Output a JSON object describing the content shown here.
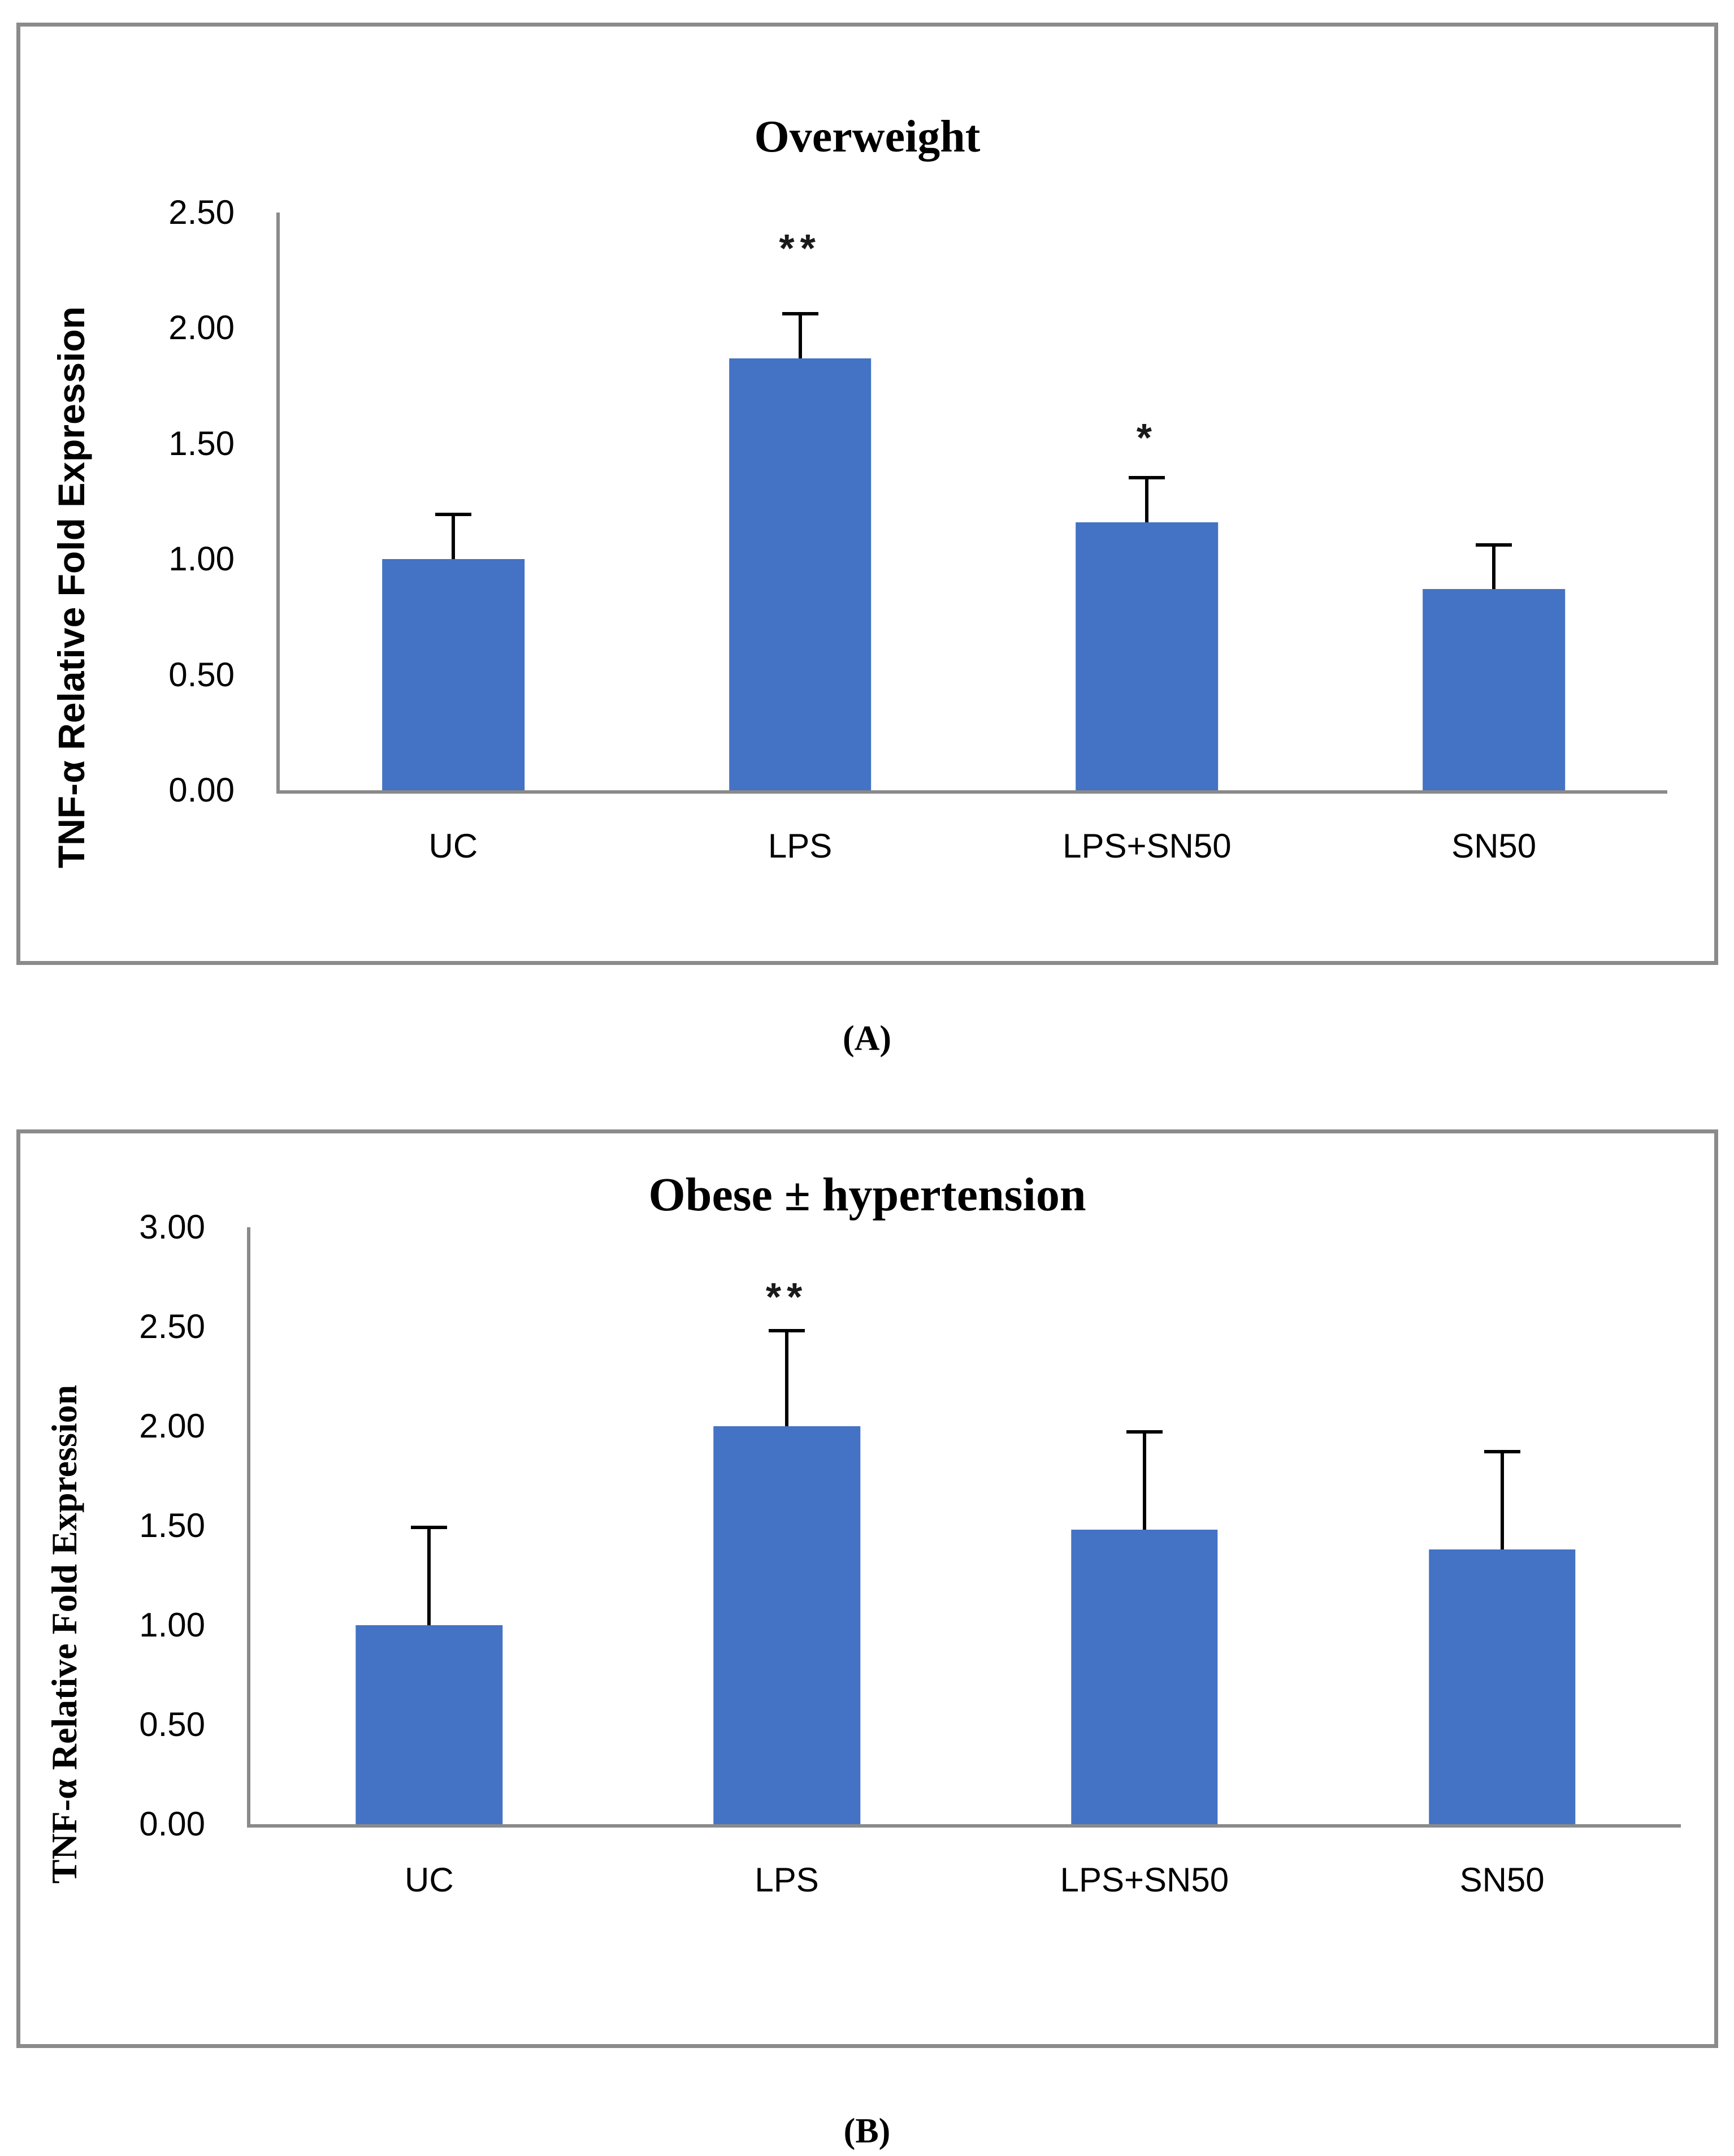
{
  "figure": {
    "panel_a_label": "(A)",
    "panel_b_label": "(B)"
  },
  "chart_data": [
    {
      "type": "bar",
      "title": "Overweight",
      "ylabel": "TNF-α Relative Fold Expression",
      "xlabel": "",
      "categories": [
        "UC",
        "LPS",
        "LPS+SN50",
        "SN50"
      ],
      "values": [
        1.0,
        1.87,
        1.16,
        0.87
      ],
      "error_bars": [
        0.2,
        0.2,
        0.2,
        0.2
      ],
      "significance": [
        "",
        "**",
        "*",
        ""
      ],
      "significance_y": [
        0,
        2.26,
        1.44,
        0
      ],
      "ylim": [
        0,
        2.5
      ],
      "yticks": [
        "2.50",
        "2.00",
        "1.50",
        "1.00",
        "0.50",
        "0.00"
      ],
      "grid": "off",
      "legend": "none",
      "bar_color": "#4472C4",
      "error_color": "#000000"
    },
    {
      "type": "bar",
      "title": "Obese ± hypertension",
      "ylabel": "TNF-α Relative Fold Expression",
      "xlabel": "",
      "categories": [
        "UC",
        "LPS",
        "LPS+SN50",
        "SN50"
      ],
      "values": [
        1.0,
        2.0,
        1.48,
        1.38
      ],
      "error_bars": [
        0.5,
        0.49,
        0.5,
        0.5
      ],
      "significance": [
        "",
        "**",
        "",
        ""
      ],
      "significance_y": [
        0,
        2.55,
        0,
        0
      ],
      "ylim": [
        0,
        3.0
      ],
      "yticks": [
        "3.00",
        "2.50",
        "2.00",
        "1.50",
        "1.00",
        "0.50",
        "0.00"
      ],
      "grid": "off",
      "legend": "none",
      "bar_color": "#4472C4",
      "error_color": "#000000"
    }
  ]
}
